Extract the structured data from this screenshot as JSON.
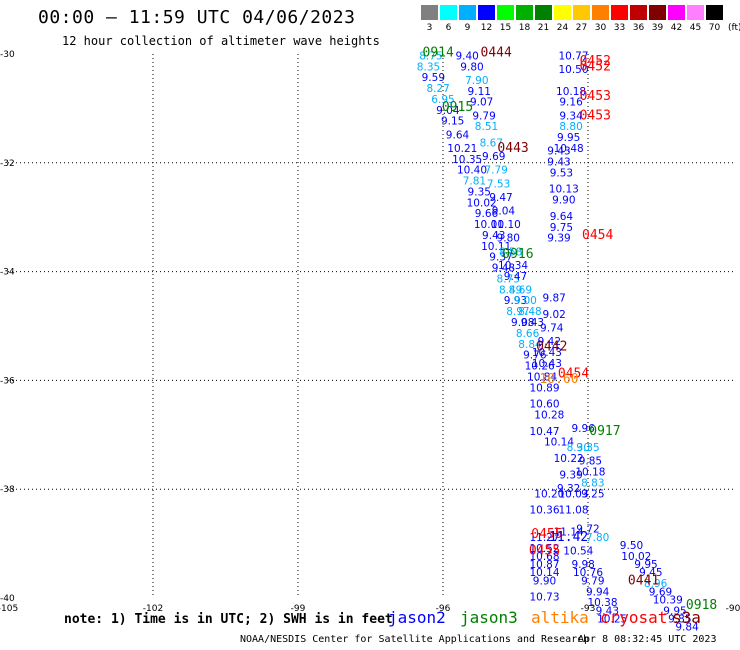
{
  "header": {
    "title": "00:00 — 11:59 UTC 04/06/2023",
    "subtitle": "12 hour collection of altimeter wave heights"
  },
  "colorbar": {
    "labels": [
      "3",
      "6",
      "9",
      "12",
      "15",
      "18",
      "21",
      "24",
      "27",
      "30",
      "33",
      "36",
      "39",
      "42",
      "45",
      "70"
    ],
    "colors": [
      "#808080",
      "#00ffff",
      "#00b0ff",
      "#0000ff",
      "#00ff00",
      "#00b000",
      "#008000",
      "#ffff00",
      "#ffc800",
      "#ff8000",
      "#ff0000",
      "#c00000",
      "#800000",
      "#ff00ff",
      "#ff80ff",
      "#000000"
    ],
    "unit": "(ft)"
  },
  "footer": {
    "note": "note: 1) Time is in UTC; 2) SWH is in feet",
    "satellites": [
      {
        "name": "jason2",
        "color": "#0000ff"
      },
      {
        "name": "jason3",
        "color": "#008000"
      },
      {
        "name": "altika",
        "color": "#ff8000"
      },
      {
        "name": "cryosat",
        "color": "#ff0000"
      },
      {
        "name": "s3a",
        "color": "#800000"
      }
    ],
    "credit": "NOAA/NESDIS Center for Satellite Applications and Research",
    "timestamp": "Apr  8 08:32:45 UTC 2023"
  },
  "chart_data": {
    "type": "scatter",
    "xlim": [
      -105,
      -90
    ],
    "ylim": [
      -40,
      -30
    ],
    "x_ticks": [
      -105,
      -102,
      -99,
      -96,
      -93,
      -90
    ],
    "y_ticks": [
      -30,
      -32,
      -34,
      -36,
      -38,
      -40
    ],
    "grid": true,
    "points": [
      {
        "x": -96.25,
        "y": -30.1,
        "v": "8.75",
        "c": "#00b0ff"
      },
      {
        "x": -96.3,
        "y": -30.3,
        "v": "8.35",
        "c": "#00b0ff"
      },
      {
        "x": -96.2,
        "y": -30.5,
        "v": "9.59",
        "c": "#0000ff"
      },
      {
        "x": -96.1,
        "y": -30.7,
        "v": "8.27",
        "c": "#00b0ff"
      },
      {
        "x": -96.0,
        "y": -30.9,
        "v": "6.95",
        "c": "#00b0ff"
      },
      {
        "x": -95.9,
        "y": -31.1,
        "v": "9.04",
        "c": "#0000ff"
      },
      {
        "x": -95.8,
        "y": -31.3,
        "v": "9.15",
        "c": "#0000ff"
      },
      {
        "x": -95.7,
        "y": -31.55,
        "v": "9.64",
        "c": "#0000ff"
      },
      {
        "x": -95.6,
        "y": -31.8,
        "v": "10.21",
        "c": "#0000ff"
      },
      {
        "x": -95.5,
        "y": -32.0,
        "v": "10.35",
        "c": "#0000ff"
      },
      {
        "x": -95.4,
        "y": -32.2,
        "v": "10.40",
        "c": "#0000ff"
      },
      {
        "x": -95.35,
        "y": -32.4,
        "v": "7.81",
        "c": "#00b0ff"
      },
      {
        "x": -95.25,
        "y": -32.6,
        "v": "9.35",
        "c": "#0000ff"
      },
      {
        "x": -95.2,
        "y": -32.8,
        "v": "10.02",
        "c": "#0000ff"
      },
      {
        "x": -95.1,
        "y": -33.0,
        "v": "9.66",
        "c": "#0000ff"
      },
      {
        "x": -95.05,
        "y": -33.2,
        "v": "10.01",
        "c": "#0000ff"
      },
      {
        "x": -94.95,
        "y": -33.4,
        "v": "9.43",
        "c": "#0000ff"
      },
      {
        "x": -94.9,
        "y": -33.6,
        "v": "10.11",
        "c": "#0000ff"
      },
      {
        "x": -94.8,
        "y": -33.8,
        "v": "9.37",
        "c": "#0000ff"
      },
      {
        "x": -94.75,
        "y": -34.0,
        "v": "9.48",
        "c": "#0000ff"
      },
      {
        "x": -94.65,
        "y": -34.2,
        "v": "8.73",
        "c": "#00b0ff"
      },
      {
        "x": -94.6,
        "y": -34.4,
        "v": "8.49",
        "c": "#00b0ff"
      },
      {
        "x": -94.5,
        "y": -34.6,
        "v": "9.93",
        "c": "#0000ff"
      },
      {
        "x": -94.45,
        "y": -34.8,
        "v": "8.97",
        "c": "#00b0ff"
      },
      {
        "x": -94.35,
        "y": -35.0,
        "v": "9.08",
        "c": "#0000ff"
      },
      {
        "x": -94.25,
        "y": -35.2,
        "v": "8.66",
        "c": "#00b0ff"
      },
      {
        "x": -94.2,
        "y": -35.4,
        "v": "8.84",
        "c": "#00b0ff"
      },
      {
        "x": -94.1,
        "y": -35.6,
        "v": "9.76",
        "c": "#0000ff"
      },
      {
        "x": -94.0,
        "y": -35.8,
        "v": "10.26",
        "c": "#0000ff"
      },
      {
        "x": -93.95,
        "y": -36.0,
        "v": "10.84",
        "c": "#0000ff"
      },
      {
        "x": -93.9,
        "y": -36.2,
        "v": "10.89",
        "c": "#0000ff"
      },
      {
        "x": -93.9,
        "y": -36.5,
        "v": "10.60",
        "c": "#0000ff"
      },
      {
        "x": -93.8,
        "y": -36.7,
        "v": "10.28",
        "c": "#0000ff"
      },
      {
        "x": -93.9,
        "y": -37.0,
        "v": "10.47",
        "c": "#0000ff"
      },
      {
        "x": -93.6,
        "y": -37.2,
        "v": "10.14",
        "c": "#0000ff"
      },
      {
        "x": -93.2,
        "y": -37.3,
        "v": "8.30",
        "c": "#00b0ff"
      },
      {
        "x": -93.4,
        "y": -37.5,
        "v": "10.22",
        "c": "#0000ff"
      },
      {
        "x": -93.35,
        "y": -37.8,
        "v": "9.39",
        "c": "#0000ff"
      },
      {
        "x": -93.4,
        "y": -38.05,
        "v": "9.32",
        "c": "#0000ff"
      },
      {
        "x": -93.8,
        "y": -38.15,
        "v": "10.20",
        "c": "#0000ff"
      },
      {
        "x": -93.3,
        "y": -38.15,
        "v": "10.03",
        "c": "#0000ff"
      },
      {
        "x": -93.9,
        "y": -38.45,
        "v": "10.36",
        "c": "#0000ff"
      },
      {
        "x": -93.3,
        "y": -38.45,
        "v": "11.08",
        "c": "#0000ff"
      },
      {
        "x": -93.9,
        "y": -38.95,
        "v": "11.27",
        "c": "#0000ff"
      },
      {
        "x": -93.4,
        "y": -38.85,
        "v": "11.14",
        "c": "#0000ff"
      },
      {
        "x": -93.0,
        "y": -38.8,
        "v": "9.72",
        "c": "#0000ff"
      },
      {
        "x": -92.8,
        "y": -38.95,
        "v": "7.80",
        "c": "#00b0ff"
      },
      {
        "x": -93.9,
        "y": -39.15,
        "v": "10.52",
        "c": "#0000ff"
      },
      {
        "x": -93.9,
        "y": -39.3,
        "v": "10.68",
        "c": "#0000ff"
      },
      {
        "x": -93.9,
        "y": -39.45,
        "v": "10.87",
        "c": "#0000ff"
      },
      {
        "x": -93.9,
        "y": -39.6,
        "v": "10.14",
        "c": "#0000ff"
      },
      {
        "x": -93.9,
        "y": -39.75,
        "v": "9.90",
        "c": "#0000ff"
      },
      {
        "x": -93.9,
        "y": -40.05,
        "v": "10.73",
        "c": "#0000ff"
      },
      {
        "x": -93.2,
        "y": -39.2,
        "v": "10.54",
        "c": "#0000ff"
      },
      {
        "x": -93.1,
        "y": -39.45,
        "v": "9.98",
        "c": "#0000ff"
      },
      {
        "x": -93.0,
        "y": -39.6,
        "v": "10.76",
        "c": "#0000ff"
      },
      {
        "x": -92.9,
        "y": -39.75,
        "v": "9.79",
        "c": "#0000ff"
      },
      {
        "x": -92.8,
        "y": -39.95,
        "v": "9.94",
        "c": "#0000ff"
      },
      {
        "x": -92.7,
        "y": -40.15,
        "v": "10.38",
        "c": "#0000ff"
      },
      {
        "x": -92.6,
        "y": -40.3,
        "v": "9.43",
        "c": "#0000ff"
      },
      {
        "x": -92.5,
        "y": -40.45,
        "v": "10.25",
        "c": "#0000ff"
      },
      {
        "x": -92.1,
        "y": -39.1,
        "v": "9.50",
        "c": "#0000ff"
      },
      {
        "x": -92.0,
        "y": -39.3,
        "v": "10.02",
        "c": "#0000ff"
      },
      {
        "x": -91.8,
        "y": -39.45,
        "v": "9.95",
        "c": "#0000ff"
      },
      {
        "x": -91.7,
        "y": -39.6,
        "v": "9.45",
        "c": "#0000ff"
      },
      {
        "x": -91.6,
        "y": -39.8,
        "v": "8.96",
        "c": "#00b0ff"
      },
      {
        "x": -91.5,
        "y": -39.95,
        "v": "9.69",
        "c": "#0000ff"
      },
      {
        "x": -91.35,
        "y": -40.1,
        "v": "10.39",
        "c": "#0000ff"
      },
      {
        "x": -91.2,
        "y": -40.3,
        "v": "9.95",
        "c": "#0000ff"
      },
      {
        "x": -91.1,
        "y": -40.45,
        "v": "9.85",
        "c": "#0000ff"
      },
      {
        "x": -90.95,
        "y": -40.6,
        "v": "9.84",
        "c": "#0000ff"
      },
      {
        "x": -95.5,
        "y": -30.1,
        "v": "9.40",
        "c": "#0000ff"
      },
      {
        "x": -95.4,
        "y": -30.3,
        "v": "9.80",
        "c": "#0000ff"
      },
      {
        "x": -95.3,
        "y": -30.55,
        "v": "7.90",
        "c": "#00b0ff"
      },
      {
        "x": -95.25,
        "y": -30.75,
        "v": "9.11",
        "c": "#0000ff"
      },
      {
        "x": -95.2,
        "y": -30.95,
        "v": "9.07",
        "c": "#0000ff"
      },
      {
        "x": -95.15,
        "y": -31.2,
        "v": "9.79",
        "c": "#0000ff"
      },
      {
        "x": -95.1,
        "y": -31.4,
        "v": "8.51",
        "c": "#00b0ff"
      },
      {
        "x": -95.0,
        "y": -31.7,
        "v": "8.67",
        "c": "#00b0ff"
      },
      {
        "x": -94.95,
        "y": -31.95,
        "v": "9.69",
        "c": "#0000ff"
      },
      {
        "x": -94.9,
        "y": -32.2,
        "v": "7.79",
        "c": "#00b0ff"
      },
      {
        "x": -94.85,
        "y": -32.45,
        "v": "7.53",
        "c": "#00b0ff"
      },
      {
        "x": -94.8,
        "y": -32.7,
        "v": "9.47",
        "c": "#0000ff"
      },
      {
        "x": -94.75,
        "y": -32.95,
        "v": "9.04",
        "c": "#0000ff"
      },
      {
        "x": -94.7,
        "y": -33.2,
        "v": "10.10",
        "c": "#0000ff"
      },
      {
        "x": -94.65,
        "y": -33.45,
        "v": "9.80",
        "c": "#0000ff"
      },
      {
        "x": -94.6,
        "y": -33.7,
        "v": "8.58",
        "c": "#00b0ff"
      },
      {
        "x": -94.55,
        "y": -33.95,
        "v": "10.34",
        "c": "#0000ff"
      },
      {
        "x": -94.5,
        "y": -34.15,
        "v": "9.47",
        "c": "#0000ff"
      },
      {
        "x": -94.4,
        "y": -34.4,
        "v": "8.69",
        "c": "#00b0ff"
      },
      {
        "x": -94.3,
        "y": -34.6,
        "v": "9.00",
        "c": "#00b0ff"
      },
      {
        "x": -94.2,
        "y": -34.8,
        "v": "8.48",
        "c": "#00b0ff"
      },
      {
        "x": -94.15,
        "y": -35.0,
        "v": "9.43",
        "c": "#0000ff"
      },
      {
        "x": -93.7,
        "y": -34.55,
        "v": "9.87",
        "c": "#0000ff"
      },
      {
        "x": -93.7,
        "y": -34.85,
        "v": "9.02",
        "c": "#0000ff"
      },
      {
        "x": -93.75,
        "y": -35.1,
        "v": "9.74",
        "c": "#0000ff"
      },
      {
        "x": -93.8,
        "y": -35.35,
        "v": "9.42",
        "c": "#0000ff"
      },
      {
        "x": -93.85,
        "y": -35.55,
        "v": "10.43",
        "c": "#0000ff"
      },
      {
        "x": -93.85,
        "y": -35.75,
        "v": "10.43",
        "c": "#0000ff"
      },
      {
        "x": -93.6,
        "y": -31.85,
        "v": "9.43",
        "c": "#0000ff"
      },
      {
        "x": -93.6,
        "y": -32.05,
        "v": "9.43",
        "c": "#0000ff"
      },
      {
        "x": -93.55,
        "y": -32.25,
        "v": "9.53",
        "c": "#0000ff"
      },
      {
        "x": -93.5,
        "y": -32.55,
        "v": "10.13",
        "c": "#0000ff"
      },
      {
        "x": -93.5,
        "y": -32.75,
        "v": "9.90",
        "c": "#0000ff"
      },
      {
        "x": -93.55,
        "y": -33.05,
        "v": "9.64",
        "c": "#0000ff"
      },
      {
        "x": -93.55,
        "y": -33.25,
        "v": "9.75",
        "c": "#0000ff"
      },
      {
        "x": -93.6,
        "y": -33.45,
        "v": "9.39",
        "c": "#0000ff"
      },
      {
        "x": -93.3,
        "y": -30.1,
        "v": "10.77",
        "c": "#0000ff"
      },
      {
        "x": -93.3,
        "y": -30.35,
        "v": "10.50",
        "c": "#0000ff"
      },
      {
        "x": -93.35,
        "y": -30.75,
        "v": "10.18",
        "c": "#0000ff"
      },
      {
        "x": -93.35,
        "y": -30.95,
        "v": "9.16",
        "c": "#0000ff"
      },
      {
        "x": -93.35,
        "y": -31.2,
        "v": "9.34",
        "c": "#0000ff"
      },
      {
        "x": -93.35,
        "y": -31.4,
        "v": "8.80",
        "c": "#00b0ff"
      },
      {
        "x": -93.4,
        "y": -31.6,
        "v": "9.95",
        "c": "#0000ff"
      },
      {
        "x": -93.4,
        "y": -31.8,
        "v": "10.48",
        "c": "#0000ff"
      },
      {
        "x": -93.1,
        "y": -36.95,
        "v": "9.96",
        "c": "#0000ff"
      },
      {
        "x": -93.0,
        "y": -37.3,
        "v": "9.35",
        "c": "#00b0ff"
      },
      {
        "x": -92.95,
        "y": -37.55,
        "v": "9.85",
        "c": "#0000ff"
      },
      {
        "x": -92.95,
        "y": -37.75,
        "v": "10.18",
        "c": "#0000ff"
      },
      {
        "x": -92.9,
        "y": -37.95,
        "v": "8.83",
        "c": "#00b0ff"
      },
      {
        "x": -92.9,
        "y": -38.15,
        "v": "9.25",
        "c": "#0000ff"
      }
    ],
    "passes": [
      {
        "x": -96.1,
        "y": -30.05,
        "label": "0914",
        "c": "#008000"
      },
      {
        "x": -95.7,
        "y": -31.05,
        "label": "0915",
        "c": "#008000"
      },
      {
        "x": -94.45,
        "y": -33.75,
        "label": "0916",
        "c": "#008000"
      },
      {
        "x": -92.65,
        "y": -37.0,
        "label": "0917",
        "c": "#008000"
      },
      {
        "x": -90.65,
        "y": -40.2,
        "label": "0918",
        "c": "#008000"
      },
      {
        "x": -94.9,
        "y": -30.05,
        "label": "0444",
        "c": "#800000"
      },
      {
        "x": -94.55,
        "y": -31.8,
        "label": "0443",
        "c": "#800000"
      },
      {
        "x": -93.75,
        "y": -35.45,
        "label": "0442",
        "c": "#800000"
      },
      {
        "x": -91.85,
        "y": -39.75,
        "label": "0441",
        "c": "#800000"
      },
      {
        "x": -92.85,
        "y": -30.2,
        "label": "0452",
        "c": "#ff0000"
      },
      {
        "x": -92.85,
        "y": -30.3,
        "label": "0452",
        "c": "#ff0000"
      },
      {
        "x": -92.85,
        "y": -30.85,
        "label": "0453",
        "c": "#ff0000"
      },
      {
        "x": -92.85,
        "y": -31.2,
        "label": "0453",
        "c": "#ff0000"
      },
      {
        "x": -92.8,
        "y": -33.4,
        "label": "0454",
        "c": "#ff0000"
      },
      {
        "x": -93.3,
        "y": -35.95,
        "label": "0454",
        "c": "#ff0000"
      },
      {
        "x": -93.85,
        "y": -38.9,
        "label": "0455",
        "c": "#ff0000"
      },
      {
        "x": -93.9,
        "y": -39.2,
        "label": "0455",
        "c": "#ff0000"
      },
      {
        "x": -93.4,
        "y": -38.95,
        "label": "11.42",
        "c": "#0000ff"
      },
      {
        "x": -93.6,
        "y": -36.05,
        "label": "10.60",
        "c": "#ff8000"
      }
    ]
  }
}
